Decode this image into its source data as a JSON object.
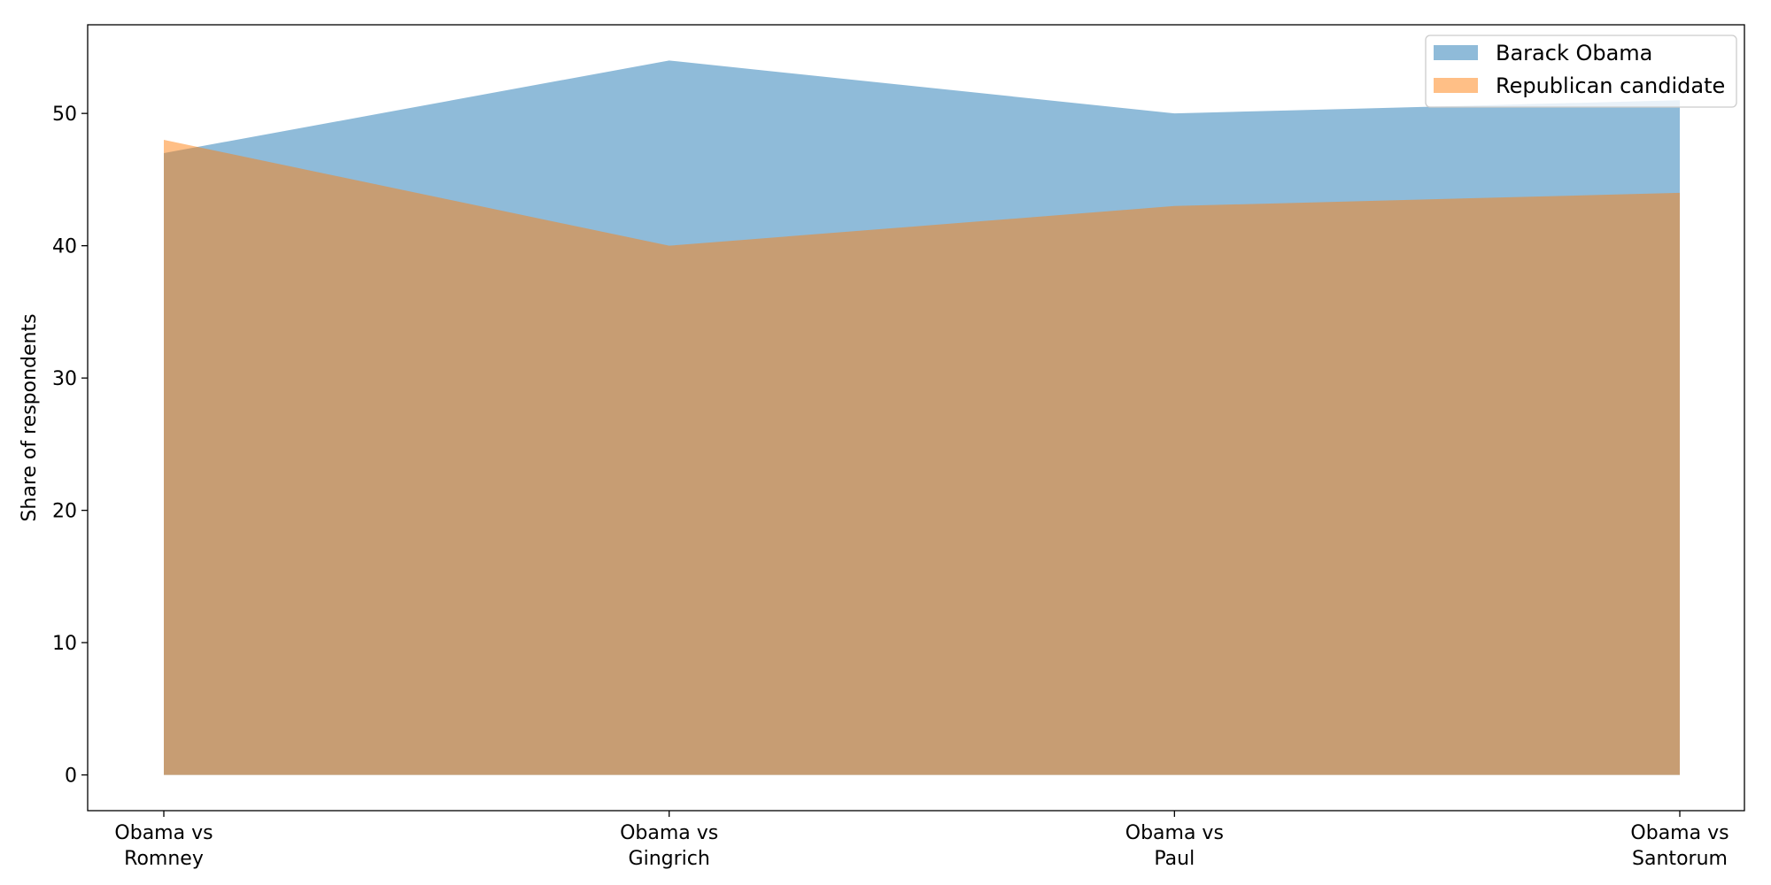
{
  "chart_data": {
    "type": "area",
    "categories": [
      [
        "Obama vs",
        "Romney"
      ],
      [
        "Obama vs",
        "Gingrich"
      ],
      [
        "Obama vs",
        "Paul"
      ],
      [
        "Obama vs",
        "Santorum"
      ]
    ],
    "series": [
      {
        "name": "Barack Obama",
        "values": [
          47,
          54,
          50,
          51
        ],
        "color": "#1f77b4"
      },
      {
        "name": "Republican candidate",
        "values": [
          48,
          40,
          43,
          44
        ],
        "color": "#ff7f0e"
      }
    ],
    "title": "",
    "xlabel": "",
    "ylabel": "Share of respondents",
    "ylim": [
      -2.7,
      56.7
    ],
    "yticks": [
      0,
      10,
      20,
      30,
      40,
      50
    ],
    "grid": false,
    "legend_position": "top-right",
    "fill_opacity": 0.5
  }
}
